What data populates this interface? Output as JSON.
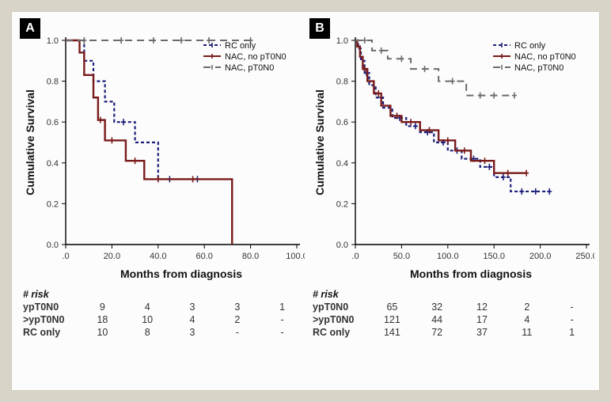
{
  "background": "#d8d4c8",
  "panels": [
    {
      "id": "A",
      "chart": {
        "type": "kaplan-meier",
        "xlabel": "Months from diagnosis",
        "ylabel": "Cumulative Survival",
        "xlim": [
          0,
          100
        ],
        "ylim": [
          0,
          1.0
        ],
        "xticks": [
          0,
          20,
          40,
          60,
          80,
          100
        ],
        "yticks": [
          0.0,
          0.2,
          0.4,
          0.6,
          0.8,
          1.0
        ],
        "title_fontsize": 14,
        "label_fontsize": 14,
        "tick_fontsize": 11,
        "axis_color": "#000000",
        "legend": {
          "pos": "top-right",
          "items": [
            {
              "label": "RC only",
              "color": "#1b1f7a",
              "dash": "short"
            },
            {
              "label": "NAC, no pT0N0",
              "color": "#7a1a1a",
              "dash": "solid"
            },
            {
              "label": "NAC, pT0N0",
              "color": "#6b6b6b",
              "dash": "long"
            }
          ]
        },
        "series": [
          {
            "name": "RC only",
            "color": "#1b1f7a",
            "dash": "short",
            "width": 2.2,
            "steps": [
              [
                0,
                1.0
              ],
              [
                8,
                1.0
              ],
              [
                8,
                0.9
              ],
              [
                12,
                0.9
              ],
              [
                12,
                0.8
              ],
              [
                17,
                0.8
              ],
              [
                17,
                0.7
              ],
              [
                21,
                0.7
              ],
              [
                21,
                0.6
              ],
              [
                30,
                0.6
              ],
              [
                30,
                0.5
              ],
              [
                40,
                0.5
              ],
              [
                40,
                0.32
              ],
              [
                57,
                0.32
              ]
            ],
            "censors": [
              [
                25,
                0.6
              ],
              [
                45,
                0.32
              ],
              [
                57,
                0.32
              ]
            ]
          },
          {
            "name": "NAC, no pT0N0",
            "color": "#7a1a1a",
            "dash": "solid",
            "width": 2.4,
            "steps": [
              [
                0,
                1.0
              ],
              [
                6,
                1.0
              ],
              [
                6,
                0.94
              ],
              [
                8,
                0.94
              ],
              [
                8,
                0.83
              ],
              [
                12,
                0.83
              ],
              [
                12,
                0.72
              ],
              [
                14,
                0.72
              ],
              [
                14,
                0.61
              ],
              [
                17,
                0.61
              ],
              [
                17,
                0.51
              ],
              [
                26,
                0.51
              ],
              [
                26,
                0.41
              ],
              [
                34,
                0.41
              ],
              [
                34,
                0.32
              ],
              [
                72,
                0.32
              ],
              [
                72,
                0.0
              ]
            ],
            "censors": [
              [
                15,
                0.61
              ],
              [
                20,
                0.51
              ],
              [
                30,
                0.41
              ],
              [
                40,
                0.32
              ],
              [
                55,
                0.32
              ]
            ]
          },
          {
            "name": "NAC, pT0N0",
            "color": "#6b6b6b",
            "dash": "long",
            "width": 2.0,
            "steps": [
              [
                0,
                1.0
              ],
              [
                80,
                1.0
              ]
            ],
            "censors": [
              [
                8,
                1.0
              ],
              [
                24,
                1.0
              ],
              [
                38,
                1.0
              ],
              [
                50,
                1.0
              ],
              [
                62,
                1.0
              ],
              [
                80,
                1.0
              ]
            ]
          }
        ]
      },
      "risk": {
        "header": "# risk",
        "cols": 5,
        "rows": [
          {
            "key": "ypT0N0",
            "vals": [
              "9",
              "4",
              "3",
              "3",
              "1"
            ]
          },
          {
            "key": ">ypT0N0",
            "vals": [
              "18",
              "10",
              "4",
              "2",
              "-"
            ]
          },
          {
            "key": "RC only",
            "vals": [
              "10",
              "8",
              "3",
              "-",
              "-"
            ]
          }
        ]
      }
    },
    {
      "id": "B",
      "chart": {
        "type": "kaplan-meier",
        "xlabel": "Months from diagnosis",
        "ylabel": "Cumulative Survival",
        "xlim": [
          0,
          250
        ],
        "ylim": [
          0,
          1.0
        ],
        "xticks": [
          0,
          50,
          100,
          150,
          200,
          250
        ],
        "yticks": [
          0.0,
          0.2,
          0.4,
          0.6,
          0.8,
          1.0
        ],
        "title_fontsize": 14,
        "label_fontsize": 14,
        "tick_fontsize": 11,
        "axis_color": "#000000",
        "legend": {
          "pos": "top-right",
          "items": [
            {
              "label": "RC only",
              "color": "#1b1f7a",
              "dash": "short"
            },
            {
              "label": "NAC, no pT0N0",
              "color": "#7a1a1a",
              "dash": "solid"
            },
            {
              "label": "NAC, pT0N0",
              "color": "#6b6b6b",
              "dash": "long"
            }
          ]
        },
        "series": [
          {
            "name": "RC only",
            "color": "#1b1f7a",
            "dash": "short",
            "width": 2.2,
            "steps": [
              [
                0,
                1.0
              ],
              [
                3,
                1.0
              ],
              [
                3,
                0.96
              ],
              [
                6,
                0.96
              ],
              [
                6,
                0.9
              ],
              [
                10,
                0.9
              ],
              [
                10,
                0.84
              ],
              [
                15,
                0.84
              ],
              [
                15,
                0.78
              ],
              [
                22,
                0.78
              ],
              [
                22,
                0.72
              ],
              [
                30,
                0.72
              ],
              [
                30,
                0.67
              ],
              [
                40,
                0.67
              ],
              [
                40,
                0.62
              ],
              [
                55,
                0.62
              ],
              [
                55,
                0.58
              ],
              [
                70,
                0.58
              ],
              [
                70,
                0.55
              ],
              [
                85,
                0.55
              ],
              [
                85,
                0.5
              ],
              [
                100,
                0.5
              ],
              [
                100,
                0.46
              ],
              [
                115,
                0.46
              ],
              [
                115,
                0.42
              ],
              [
                135,
                0.42
              ],
              [
                135,
                0.38
              ],
              [
                150,
                0.38
              ],
              [
                150,
                0.33
              ],
              [
                168,
                0.33
              ],
              [
                168,
                0.26
              ],
              [
                210,
                0.26
              ]
            ],
            "censors": [
              [
                12,
                0.84
              ],
              [
                28,
                0.72
              ],
              [
                48,
                0.62
              ],
              [
                65,
                0.58
              ],
              [
                78,
                0.55
              ],
              [
                95,
                0.5
              ],
              [
                110,
                0.46
              ],
              [
                128,
                0.42
              ],
              [
                145,
                0.38
              ],
              [
                160,
                0.33
              ],
              [
                180,
                0.26
              ],
              [
                195,
                0.26
              ],
              [
                210,
                0.26
              ]
            ]
          },
          {
            "name": "NAC, no pT0N0",
            "color": "#7a1a1a",
            "dash": "solid",
            "width": 2.4,
            "steps": [
              [
                0,
                1.0
              ],
              [
                2,
                1.0
              ],
              [
                2,
                0.97
              ],
              [
                5,
                0.97
              ],
              [
                5,
                0.92
              ],
              [
                8,
                0.92
              ],
              [
                8,
                0.86
              ],
              [
                13,
                0.86
              ],
              [
                13,
                0.8
              ],
              [
                20,
                0.8
              ],
              [
                20,
                0.74
              ],
              [
                28,
                0.74
              ],
              [
                28,
                0.68
              ],
              [
                38,
                0.68
              ],
              [
                38,
                0.63
              ],
              [
                50,
                0.63
              ],
              [
                50,
                0.6
              ],
              [
                70,
                0.6
              ],
              [
                70,
                0.56
              ],
              [
                90,
                0.56
              ],
              [
                90,
                0.51
              ],
              [
                108,
                0.51
              ],
              [
                108,
                0.46
              ],
              [
                125,
                0.46
              ],
              [
                125,
                0.41
              ],
              [
                150,
                0.41
              ],
              [
                150,
                0.35
              ],
              [
                185,
                0.35
              ]
            ],
            "censors": [
              [
                10,
                0.86
              ],
              [
                25,
                0.74
              ],
              [
                45,
                0.63
              ],
              [
                60,
                0.6
              ],
              [
                80,
                0.56
              ],
              [
                100,
                0.51
              ],
              [
                118,
                0.46
              ],
              [
                140,
                0.41
              ],
              [
                165,
                0.35
              ],
              [
                185,
                0.35
              ]
            ]
          },
          {
            "name": "NAC, pT0N0",
            "color": "#6b6b6b",
            "dash": "long",
            "width": 2.0,
            "steps": [
              [
                0,
                1.0
              ],
              [
                18,
                1.0
              ],
              [
                18,
                0.95
              ],
              [
                35,
                0.95
              ],
              [
                35,
                0.91
              ],
              [
                60,
                0.91
              ],
              [
                60,
                0.86
              ],
              [
                90,
                0.86
              ],
              [
                90,
                0.8
              ],
              [
                120,
                0.8
              ],
              [
                120,
                0.73
              ],
              [
                172,
                0.73
              ]
            ],
            "censors": [
              [
                10,
                1.0
              ],
              [
                28,
                0.95
              ],
              [
                50,
                0.91
              ],
              [
                75,
                0.86
              ],
              [
                105,
                0.8
              ],
              [
                135,
                0.73
              ],
              [
                150,
                0.73
              ],
              [
                172,
                0.73
              ]
            ]
          }
        ]
      },
      "risk": {
        "header": "# risk",
        "cols": 5,
        "rows": [
          {
            "key": "ypT0N0",
            "vals": [
              "65",
              "32",
              "12",
              "2",
              "-"
            ]
          },
          {
            "key": ">ypT0N0",
            "vals": [
              "121",
              "44",
              "17",
              "4",
              "-"
            ]
          },
          {
            "key": "RC only",
            "vals": [
              "141",
              "72",
              "37",
              "11",
              "1"
            ]
          }
        ]
      }
    }
  ]
}
